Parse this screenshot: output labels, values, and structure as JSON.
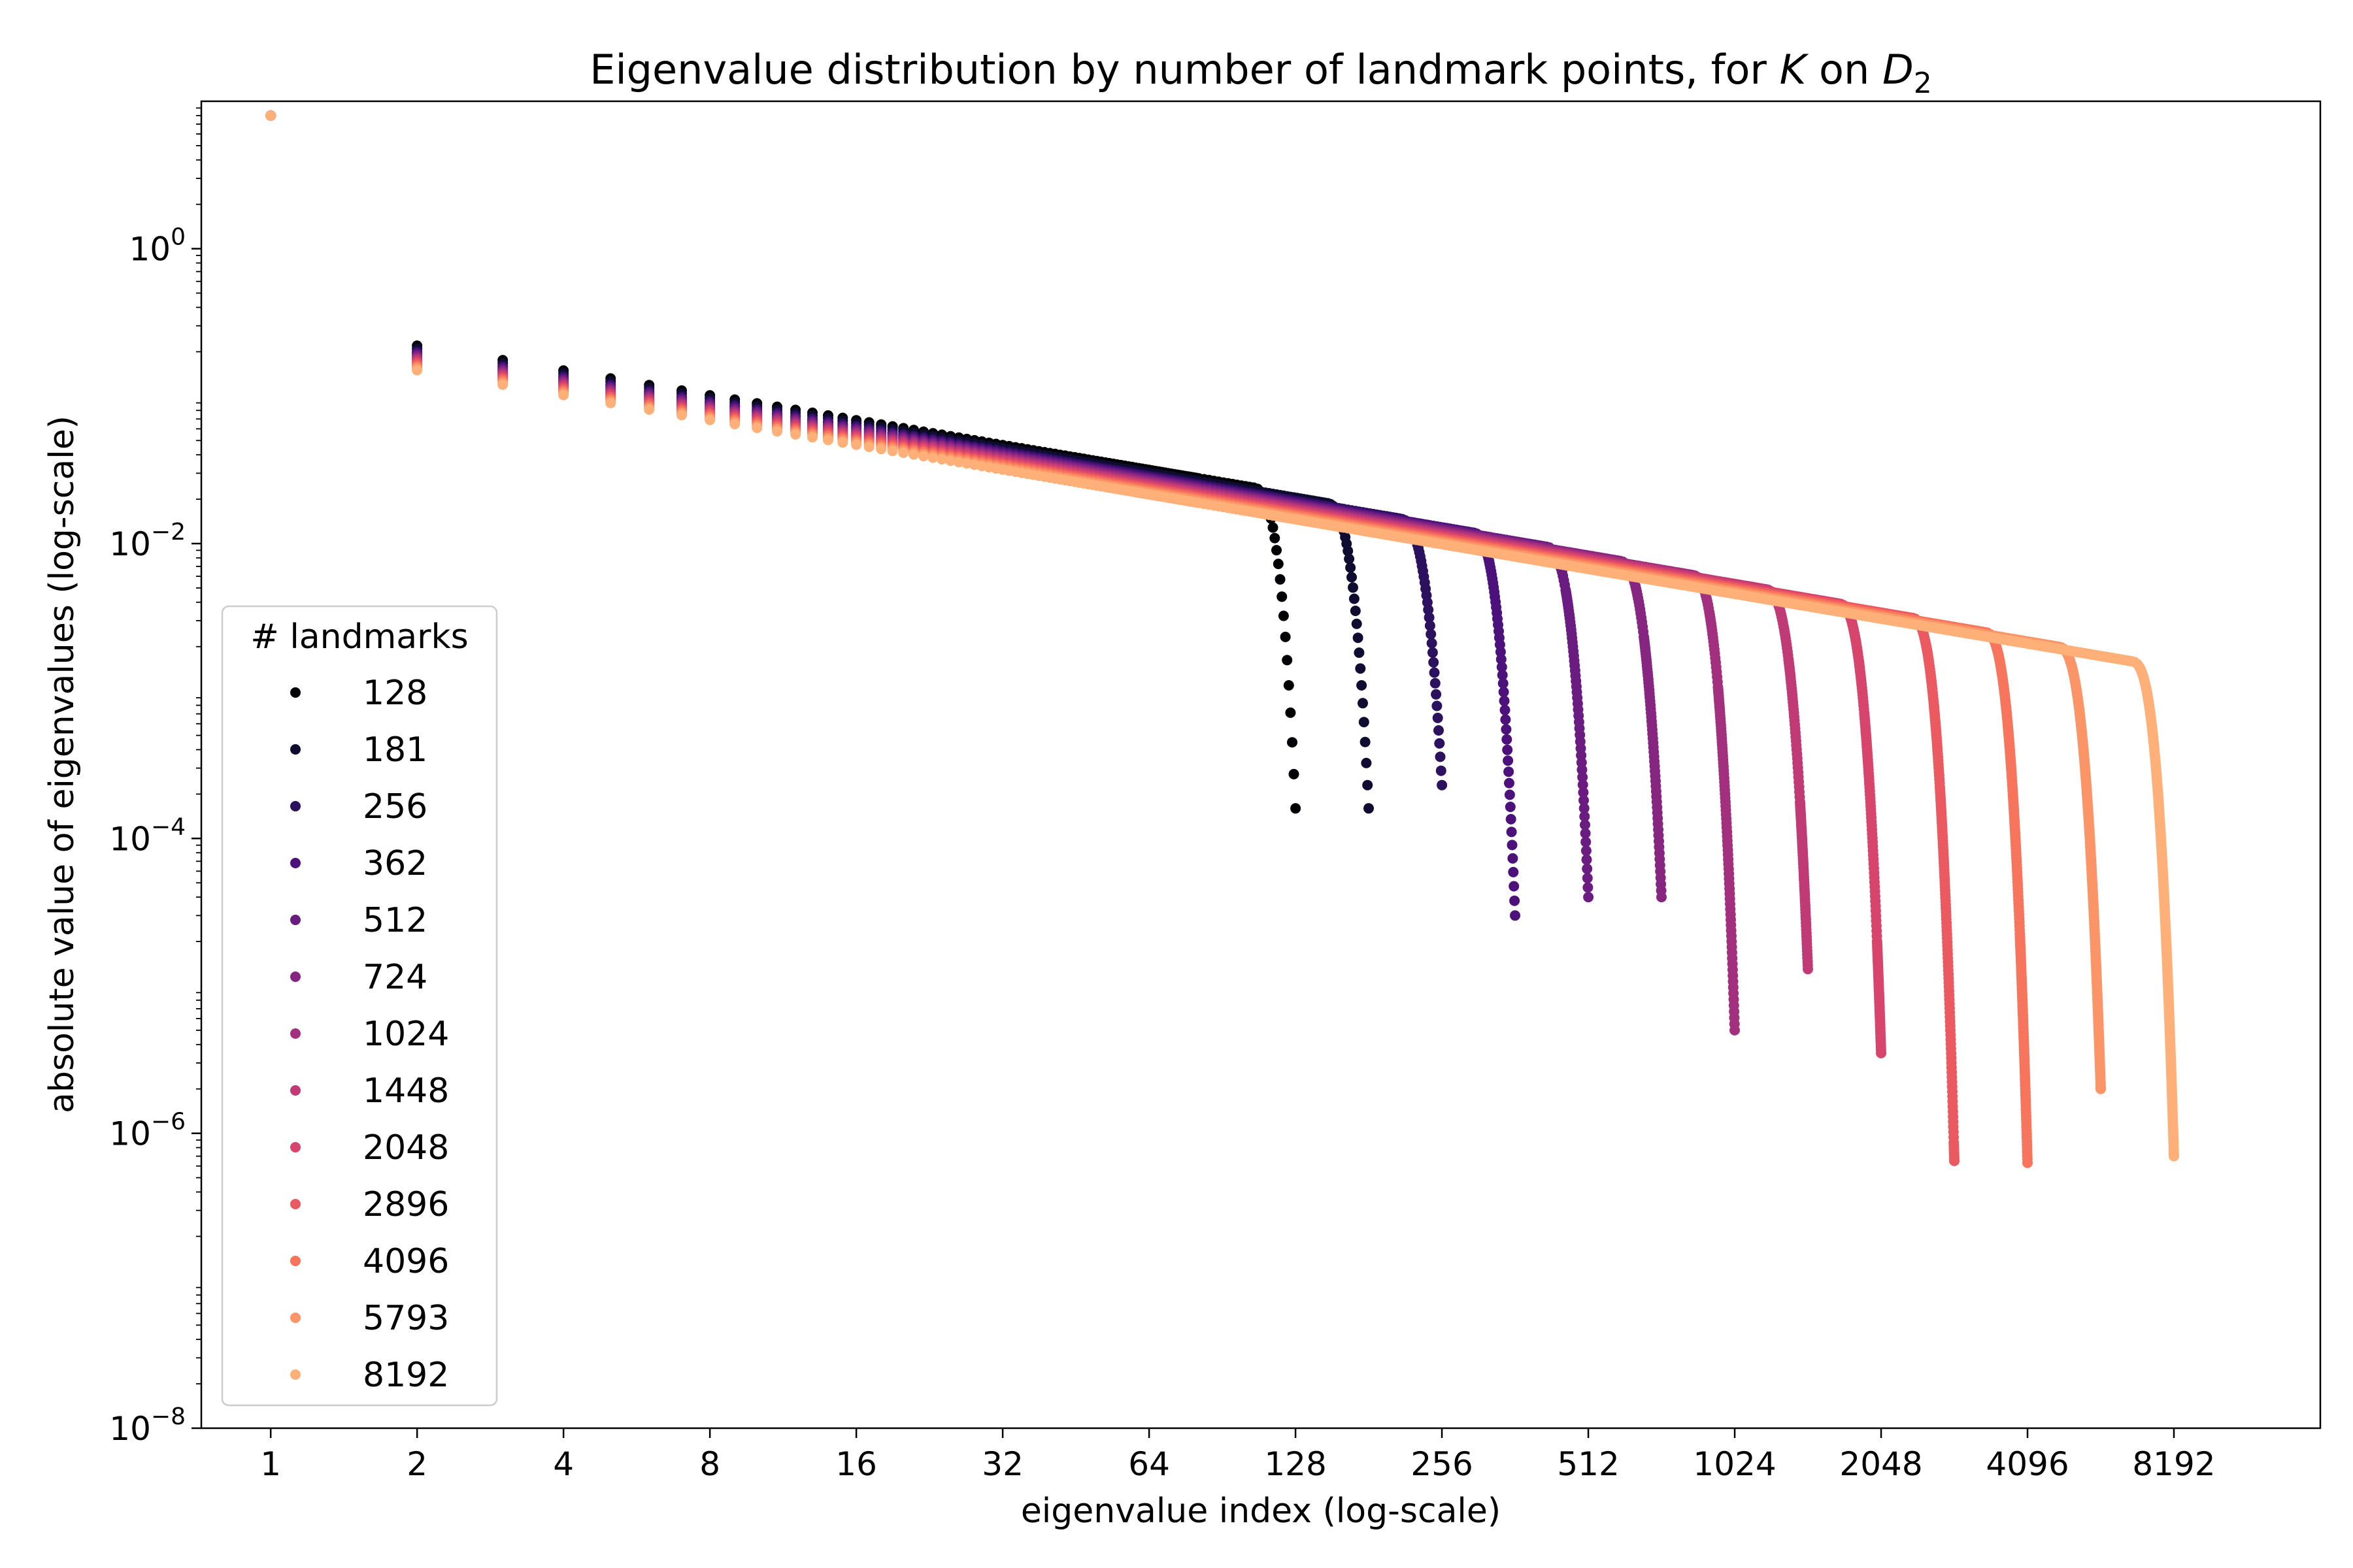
{
  "chart_data": {
    "type": "scatter",
    "title": {
      "main": "Eigenvalue distribution by number of landmark points, for ",
      "var1": "K",
      "mid": " on ",
      "var2": "D",
      "sub": "2"
    },
    "xlabel": "eigenvalue index (log-scale)",
    "ylabel": "absolute value of eigenvalues (log-scale)",
    "x_scale": "log2",
    "y_scale": "log10",
    "xlim": [
      0.72,
      16384
    ],
    "ylim": [
      1e-08,
      10
    ],
    "x_ticks": [
      {
        "value": 1,
        "label": "1"
      },
      {
        "value": 2,
        "label": "2"
      },
      {
        "value": 4,
        "label": "4"
      },
      {
        "value": 8,
        "label": "8"
      },
      {
        "value": 16,
        "label": "16"
      },
      {
        "value": 32,
        "label": "32"
      },
      {
        "value": 64,
        "label": "64"
      },
      {
        "value": 128,
        "label": "128"
      },
      {
        "value": 256,
        "label": "256"
      },
      {
        "value": 512,
        "label": "512"
      },
      {
        "value": 1024,
        "label": "1024"
      },
      {
        "value": 2048,
        "label": "2048"
      },
      {
        "value": 4096,
        "label": "4096"
      },
      {
        "value": 8192,
        "label": "8192"
      }
    ],
    "y_ticks": [
      {
        "value": 1,
        "base": "10",
        "exp": "0"
      },
      {
        "value": 0.01,
        "base": "10",
        "exp": "−2"
      },
      {
        "value": 0.0001,
        "base": "10",
        "exp": "−4"
      },
      {
        "value": 1e-06,
        "base": "10",
        "exp": "−6"
      },
      {
        "value": 1e-08,
        "base": "10",
        "exp": "−8"
      }
    ],
    "grid": false,
    "legend": {
      "title": "# landmarks",
      "placement": "center-left"
    },
    "series": [
      {
        "name": "128",
        "n": 128,
        "color": "#000004",
        "first": 8.0,
        "second": 0.22,
        "tail_min": 0.00016
      },
      {
        "name": "181",
        "n": 181,
        "color": "#0f0b31",
        "first": 8.0,
        "second": 0.21,
        "tail_min": 0.00016
      },
      {
        "name": "256",
        "n": 256,
        "color": "#2b115e",
        "first": 8.0,
        "second": 0.2,
        "tail_min": 0.00023
      },
      {
        "name": "362",
        "n": 362,
        "color": "#4c117a",
        "first": 8.0,
        "second": 0.195,
        "tail_min": 3e-05
      },
      {
        "name": "512",
        "n": 512,
        "color": "#6a1c81",
        "first": 8.0,
        "second": 0.19,
        "tail_min": 4e-05
      },
      {
        "name": "724",
        "n": 724,
        "color": "#872681",
        "first": 8.0,
        "second": 0.185,
        "tail_min": 4e-05
      },
      {
        "name": "1024",
        "n": 1024,
        "color": "#a3307e",
        "first": 8.0,
        "second": 0.18,
        "tail_min": 5e-06
      },
      {
        "name": "1448",
        "n": 1448,
        "color": "#c03a76",
        "first": 8.0,
        "second": 0.175,
        "tail_min": 1.3e-05
      },
      {
        "name": "2048",
        "n": 2048,
        "color": "#d8456c",
        "first": 8.0,
        "second": 0.17,
        "tail_min": 3.5e-06
      },
      {
        "name": "2896",
        "n": 2896,
        "color": "#ec5a61",
        "first": 8.0,
        "second": 0.165,
        "tail_min": 6.5e-07
      },
      {
        "name": "4096",
        "n": 4096,
        "color": "#f6755c",
        "first": 8.0,
        "second": 0.16,
        "tail_min": 6.3e-07
      },
      {
        "name": "5793",
        "n": 5793,
        "color": "#fb9467",
        "first": 8.0,
        "second": 0.155,
        "tail_min": 2e-06
      },
      {
        "name": "8192",
        "n": 8192,
        "color": "#feb078",
        "first": 8.0,
        "second": 0.15,
        "tail_min": 7e-07
      }
    ]
  }
}
